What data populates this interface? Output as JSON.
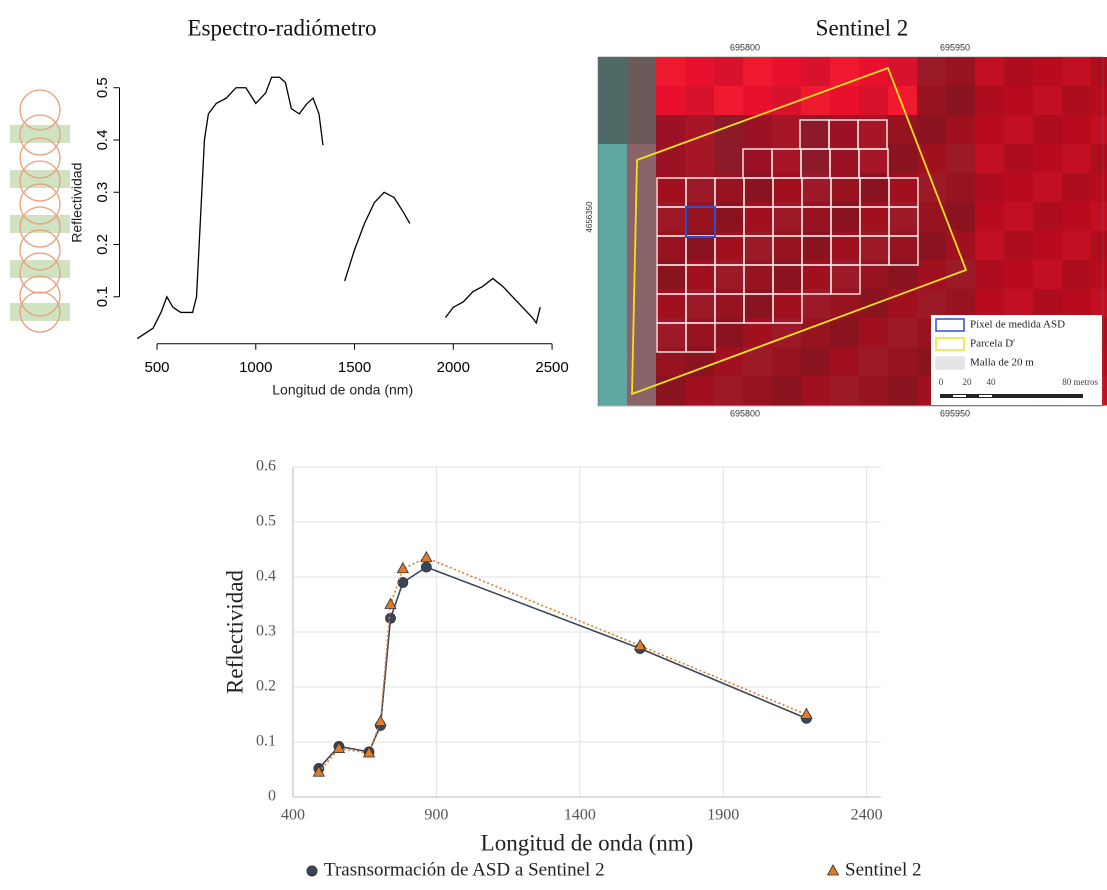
{
  "chart_data": [
    {
      "type": "line",
      "title": "Espectro-radiómetro",
      "x_label": "Longitud de onda (nm)",
      "y_label": "Reflectividad",
      "x": [
        400,
        480,
        520,
        550,
        580,
        620,
        680,
        700,
        720,
        740,
        760,
        800,
        850,
        900,
        950,
        1000,
        1050,
        1080,
        1120,
        1150,
        1180,
        1220,
        1260,
        1290,
        1320,
        1340,
        1400,
        1450,
        1500,
        1550,
        1600,
        1650,
        1700,
        1750,
        1780,
        1870,
        1960,
        2000,
        2050,
        2100,
        2150,
        2200,
        2250,
        2300,
        2350,
        2400,
        2420,
        2440
      ],
      "series": [
        {
          "color": "#000000",
          "values": [
            0.02,
            0.04,
            0.07,
            0.1,
            0.08,
            0.07,
            0.07,
            0.1,
            0.25,
            0.4,
            0.45,
            0.47,
            0.48,
            0.5,
            0.5,
            0.47,
            0.49,
            0.52,
            0.52,
            0.51,
            0.46,
            0.45,
            0.47,
            0.48,
            0.45,
            0.39,
            null,
            0.13,
            0.19,
            0.24,
            0.28,
            0.3,
            0.29,
            0.26,
            0.24,
            null,
            0.06,
            0.08,
            0.09,
            0.11,
            0.12,
            0.135,
            0.12,
            0.1,
            0.08,
            0.06,
            0.05,
            0.08
          ]
        }
      ],
      "xlim": [
        310,
        2570
      ],
      "ylim": [
        0.01,
        0.55
      ],
      "xticks": [
        500,
        1000,
        1500,
        2000,
        2500
      ],
      "yticks": [
        0.1,
        0.2,
        0.3,
        0.4,
        0.5
      ],
      "grid": false
    },
    {
      "type": "line",
      "x_label": "Longitud de onda (nm)",
      "y_label": "Reflectividad",
      "x": [
        490,
        560,
        665,
        705,
        740,
        783,
        865,
        1610,
        2190
      ],
      "series": [
        {
          "name": "Trasnsormación de ASD a Sentinel 2",
          "color": "#3b4558",
          "marker": "circle",
          "line_style": "solid",
          "values": [
            0.052,
            0.092,
            0.082,
            0.13,
            0.325,
            0.39,
            0.418,
            0.27,
            0.143
          ]
        },
        {
          "name": "Sentinel 2",
          "color": "#e07b2a",
          "marker": "triangle",
          "line_style": "dotted",
          "values": [
            0.045,
            0.088,
            0.08,
            0.137,
            0.35,
            0.415,
            0.435,
            0.275,
            0.15
          ]
        }
      ],
      "xlim": [
        400,
        2450
      ],
      "ylim": [
        0,
        0.6
      ],
      "xticks": [
        400,
        900,
        1400,
        1900,
        2400
      ],
      "yticks": [
        0,
        0.1,
        0.2,
        0.3,
        0.4,
        0.5,
        0.6
      ],
      "grid": true,
      "legend": "bottom"
    }
  ],
  "map_panel": {
    "title": "Sentinel 2",
    "easting_labels": [
      "695800",
      "695950"
    ],
    "northing_label": "4656350",
    "legend": [
      "Píxel de medida ASD",
      "Parcela D'",
      "Malla de 20 m"
    ],
    "scale_labels": [
      "0",
      "20",
      "40",
      "80 metros"
    ]
  }
}
